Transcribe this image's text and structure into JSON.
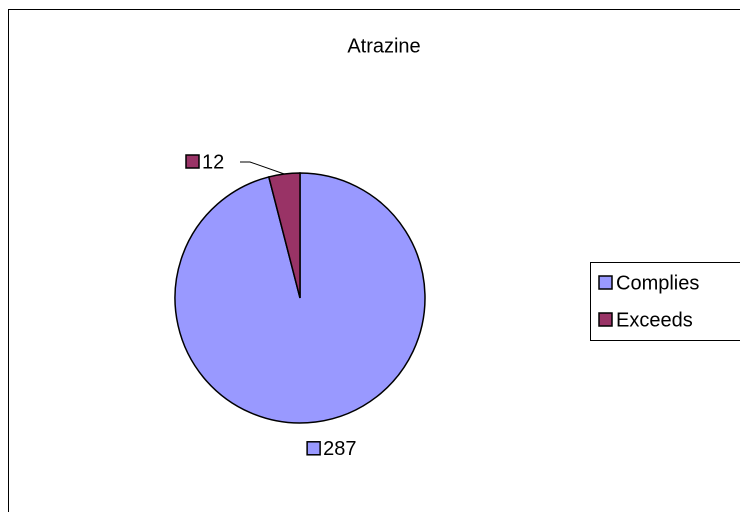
{
  "chart_data": {
    "type": "pie",
    "title": "Atrazine",
    "categories": [
      "Complies",
      "Exceeds"
    ],
    "values": [
      287,
      12
    ],
    "colors": [
      "#9999ff",
      "#993366"
    ],
    "legend": "right"
  }
}
